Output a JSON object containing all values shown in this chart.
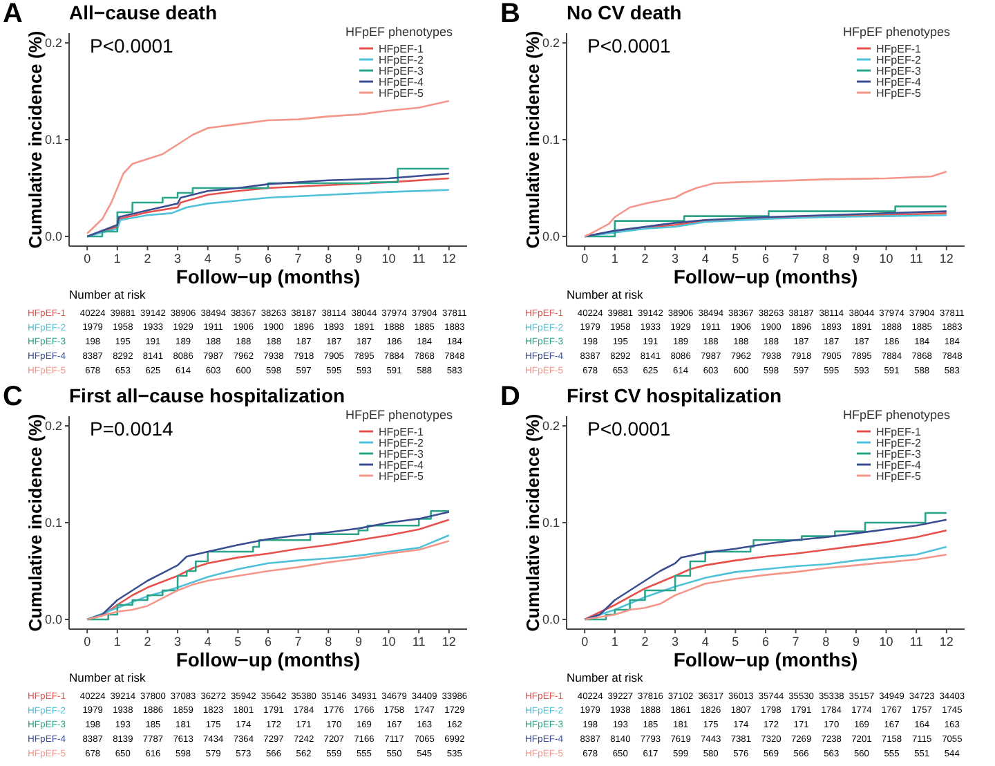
{
  "chart_data": [
    {
      "type": "line",
      "title": "All−cause death",
      "xlabel": "Follow−up (months)",
      "ylabel": "Cumulative incidence (%)",
      "legend_title": "HFpEF phenotypes",
      "legend": "top right",
      "grid": false,
      "xlim": [
        -0.6,
        12.6
      ],
      "ylim": [
        -0.01,
        0.21
      ],
      "xticks": [
        0,
        1,
        2,
        3,
        4,
        5,
        6,
        7,
        8,
        9,
        10,
        11,
        12
      ],
      "yticks": [
        {
          "value": 0,
          "label": "0.0"
        },
        {
          "value": 0.1,
          "label": "0.1"
        },
        {
          "value": 0.2,
          "label": "0.2"
        }
      ],
      "annotations": [
        "A",
        "P<0.0001",
        "Number at risk",
        "40224 39881 39142 38906 38494 38367 38263 38187 38114 38044 37974 37904 37811",
        "1979 1958 1933 1929 1911 1906 1900 1896 1893 1891 1888 1885 1883",
        "198 195 191 189 188 188 188 187 187 187 186 184 184",
        "8387 8292 8141 8086 7987 7962 7938 7918 7905 7895 7884 7868 7848",
        "678 653 625 614 603 600 598 597 595 593 591 588 583"
      ],
      "series": [
        {
          "name": "HFpEF-1",
          "color": "#e8514b",
          "x": [
            0,
            1,
            1.05,
            2,
            3,
            3.1,
            4,
            5,
            6,
            8,
            10,
            12
          ],
          "values": [
            0,
            0.01,
            0.018,
            0.025,
            0.03,
            0.035,
            0.043,
            0.047,
            0.05,
            0.053,
            0.056,
            0.06
          ]
        },
        {
          "name": "HFpEF-2",
          "color": "#4fc1d9",
          "x": [
            0,
            1,
            1.1,
            2,
            2.8,
            3.3,
            4,
            5,
            6,
            8,
            10,
            12
          ],
          "values": [
            0,
            0.008,
            0.017,
            0.022,
            0.024,
            0.03,
            0.034,
            0.037,
            0.04,
            0.043,
            0.046,
            0.048
          ]
        },
        {
          "name": "HFpEF-3",
          "color": "#2aa58a",
          "type": "step",
          "x": [
            0,
            0.5,
            1,
            1.5,
            2.5,
            3,
            3.5,
            6,
            9.4,
            10.3,
            12
          ],
          "values": [
            0,
            0.005,
            0.025,
            0.035,
            0.04,
            0.045,
            0.05,
            0.055,
            0.056,
            0.07,
            0.07
          ]
        },
        {
          "name": "HFpEF-4",
          "color": "#3b4e91",
          "x": [
            0,
            1,
            1.05,
            2,
            3,
            3.1,
            4,
            5,
            6,
            8,
            10,
            12
          ],
          "values": [
            0,
            0.012,
            0.02,
            0.027,
            0.034,
            0.04,
            0.047,
            0.05,
            0.054,
            0.058,
            0.06,
            0.065
          ]
        },
        {
          "name": "HFpEF-5",
          "color": "#f4978a",
          "x": [
            0,
            0.5,
            0.8,
            1,
            1.2,
            1.5,
            2,
            2.5,
            3,
            3.5,
            4,
            5,
            6,
            7,
            8,
            9,
            10,
            11,
            12
          ],
          "values": [
            0.003,
            0.018,
            0.035,
            0.05,
            0.065,
            0.075,
            0.08,
            0.085,
            0.095,
            0.105,
            0.112,
            0.116,
            0.12,
            0.121,
            0.124,
            0.126,
            0.13,
            0.133,
            0.14
          ]
        }
      ]
    },
    {
      "type": "line",
      "title": "No CV death",
      "xlabel": "Follow−up (months)",
      "ylabel": "Cumulative incidence (%)",
      "legend_title": "HFpEF phenotypes",
      "legend": "top right",
      "grid": false,
      "xlim": [
        -0.6,
        12.6
      ],
      "ylim": [
        -0.01,
        0.21
      ],
      "xticks": [
        0,
        1,
        2,
        3,
        4,
        5,
        6,
        7,
        8,
        9,
        10,
        11,
        12
      ],
      "yticks": [
        {
          "value": 0,
          "label": "0.0"
        },
        {
          "value": 0.1,
          "label": "0.1"
        },
        {
          "value": 0.2,
          "label": "0.2"
        }
      ],
      "annotations": [
        "B",
        "P<0.0001",
        "Number at risk",
        "40224 39881 39142 38906 38494 38367 38263 38187 38114 38044 37974 37904 37811",
        "1979 1958 1933 1929 1911 1906 1900 1896 1893 1891 1888 1885 1883",
        "198 195 191 189 188 188 188 187 187 187 186 184 184",
        "8387 8292 8141 8086 7987 7962 7938 7918 7905 7895 7884 7868 7848",
        "678 653 625 614 603 600 598 597 595 593 591 588 583"
      ],
      "series": [
        {
          "name": "HFpEF-1",
          "color": "#e8514b",
          "x": [
            0,
            1,
            2,
            3,
            4,
            6,
            8,
            10,
            12
          ],
          "values": [
            0,
            0.005,
            0.009,
            0.012,
            0.016,
            0.019,
            0.021,
            0.022,
            0.024
          ]
        },
        {
          "name": "HFpEF-2",
          "color": "#4fc1d9",
          "x": [
            0,
            1,
            2,
            3,
            4,
            6,
            8,
            10,
            12
          ],
          "values": [
            0,
            0.004,
            0.008,
            0.01,
            0.015,
            0.018,
            0.02,
            0.021,
            0.022
          ]
        },
        {
          "name": "HFpEF-3",
          "color": "#2aa58a",
          "type": "step",
          "x": [
            0,
            1,
            3.3,
            6.1,
            10.3,
            12
          ],
          "values": [
            0,
            0.016,
            0.021,
            0.026,
            0.031,
            0.031
          ]
        },
        {
          "name": "HFpEF-4",
          "color": "#3b4e91",
          "x": [
            0,
            1,
            2,
            3,
            4,
            6,
            8,
            10,
            12
          ],
          "values": [
            0,
            0.006,
            0.01,
            0.014,
            0.017,
            0.02,
            0.022,
            0.024,
            0.026
          ]
        },
        {
          "name": "HFpEF-5",
          "color": "#f4978a",
          "x": [
            0,
            0.2,
            0.5,
            0.8,
            1,
            1.5,
            2,
            2.5,
            3,
            3.3,
            3.7,
            4.3,
            5,
            6,
            8,
            10,
            11.5,
            12
          ],
          "values": [
            0,
            0.003,
            0.008,
            0.013,
            0.02,
            0.03,
            0.034,
            0.037,
            0.04,
            0.045,
            0.05,
            0.055,
            0.056,
            0.057,
            0.059,
            0.06,
            0.062,
            0.067
          ]
        }
      ]
    },
    {
      "type": "line",
      "title": "First all−cause hospitalization",
      "xlabel": "Follow−up (months)",
      "ylabel": "Cumulative incidence (%)",
      "legend_title": "HFpEF phenotypes",
      "legend": "top right",
      "grid": false,
      "xlim": [
        -0.6,
        12.6
      ],
      "ylim": [
        -0.01,
        0.21
      ],
      "xticks": [
        0,
        1,
        2,
        3,
        4,
        5,
        6,
        7,
        8,
        9,
        10,
        11,
        12
      ],
      "yticks": [
        {
          "value": 0,
          "label": "0.0"
        },
        {
          "value": 0.1,
          "label": "0.1"
        },
        {
          "value": 0.2,
          "label": "0.2"
        }
      ],
      "annotations": [
        "C",
        "P=0.0014",
        "Number at risk",
        "40224 39214 37800 37083 36272 35942 35642 35380 35146 34931 34679 34409 33986",
        "1979 1938 1886 1859 1823 1801 1791 1784 1776 1766 1758 1747 1729",
        "198 193 185 181 175 174 172 171 170 169 167 163 162",
        "8387 8139 7787 7613 7434 7364 7297 7242 7207 7166 7117 7065 6992",
        "678 650 616 598 579 573 566 562 559 555 550 545 535"
      ],
      "series": [
        {
          "name": "HFpEF-1",
          "color": "#e8514b",
          "x": [
            0,
            0.5,
            1,
            1.5,
            2,
            3,
            3.5,
            4,
            5,
            6,
            7,
            8,
            9,
            10,
            11,
            12
          ],
          "values": [
            0,
            0.004,
            0.015,
            0.025,
            0.033,
            0.045,
            0.053,
            0.058,
            0.064,
            0.068,
            0.073,
            0.077,
            0.082,
            0.087,
            0.093,
            0.103
          ]
        },
        {
          "name": "HFpEF-2",
          "color": "#4fc1d9",
          "x": [
            0,
            1,
            2,
            3,
            4,
            5,
            6,
            7,
            8,
            9,
            10,
            11,
            12
          ],
          "values": [
            0,
            0.012,
            0.024,
            0.033,
            0.044,
            0.052,
            0.058,
            0.061,
            0.063,
            0.066,
            0.07,
            0.074,
            0.087
          ]
        },
        {
          "name": "HFpEF-3",
          "color": "#2aa58a",
          "type": "step",
          "x": [
            0,
            0.6,
            0.7,
            1,
            1.5,
            2,
            2.5,
            3,
            3.3,
            3.6,
            4,
            5.5,
            5.7,
            7.3,
            7.4,
            9,
            9.3,
            11,
            11.4,
            12
          ],
          "values": [
            0,
            0,
            0.005,
            0.015,
            0.02,
            0.025,
            0.03,
            0.045,
            0.05,
            0.06,
            0.07,
            0.075,
            0.082,
            0.082,
            0.088,
            0.092,
            0.097,
            0.104,
            0.112,
            0.112
          ]
        },
        {
          "name": "HFpEF-4",
          "color": "#3b4e91",
          "x": [
            0,
            0.5,
            1,
            1.5,
            2,
            2.5,
            3,
            3.3,
            4,
            5,
            6,
            7,
            8,
            9,
            10,
            11,
            12
          ],
          "values": [
            0,
            0.005,
            0.02,
            0.03,
            0.04,
            0.048,
            0.056,
            0.065,
            0.07,
            0.077,
            0.083,
            0.087,
            0.09,
            0.094,
            0.1,
            0.104,
            0.111
          ]
        },
        {
          "name": "HFpEF-5",
          "color": "#f4978a",
          "x": [
            0,
            1,
            1.5,
            2,
            2.5,
            3,
            3.5,
            4,
            5,
            6,
            7,
            8,
            9,
            10,
            11,
            12
          ],
          "values": [
            0,
            0.008,
            0.01,
            0.014,
            0.022,
            0.03,
            0.036,
            0.04,
            0.045,
            0.05,
            0.054,
            0.059,
            0.063,
            0.068,
            0.072,
            0.081
          ]
        }
      ]
    },
    {
      "type": "line",
      "title": "First CV hospitalization",
      "xlabel": "Follow−up (months)",
      "ylabel": "Cumulative incidence (%)",
      "legend_title": "HFpEF phenotypes",
      "legend": "top right",
      "grid": false,
      "xlim": [
        -0.6,
        12.6
      ],
      "ylim": [
        -0.01,
        0.21
      ],
      "xticks": [
        0,
        1,
        2,
        3,
        4,
        5,
        6,
        7,
        8,
        9,
        10,
        11,
        12
      ],
      "yticks": [
        {
          "value": 0,
          "label": "0.0"
        },
        {
          "value": 0.1,
          "label": "0.1"
        },
        {
          "value": 0.2,
          "label": "0.2"
        }
      ],
      "annotations": [
        "D",
        "P<0.0001",
        "Number at risk",
        "40224 39227 37816 37102 36317 36013 35744 35530 35338 35157 34949 34723 34403",
        "1979 1938 1888 1861 1826 1807 1798 1791 1784 1774 1767 1757 1745",
        "198 193 185 181 175 174 172 171 170 169 167 164 163",
        "8387 8140 7793 7619 7443 7381 7320 7269 7238 7201 7158 7115 7055",
        "678 650 617 599 580 576 569 566 563 560 555 551 544"
      ],
      "series": [
        {
          "name": "HFpEF-1",
          "color": "#e8514b",
          "x": [
            0,
            1,
            2,
            3,
            3.5,
            4,
            5,
            6,
            7,
            8,
            9,
            10,
            11,
            12
          ],
          "values": [
            0,
            0.015,
            0.032,
            0.045,
            0.052,
            0.056,
            0.061,
            0.065,
            0.068,
            0.072,
            0.076,
            0.08,
            0.085,
            0.092
          ]
        },
        {
          "name": "HFpEF-2",
          "color": "#4fc1d9",
          "x": [
            0,
            1,
            2,
            3,
            4,
            5,
            6,
            7,
            8,
            9,
            10,
            11,
            12
          ],
          "values": [
            0,
            0.01,
            0.023,
            0.034,
            0.043,
            0.049,
            0.052,
            0.055,
            0.057,
            0.061,
            0.064,
            0.067,
            0.075
          ]
        },
        {
          "name": "HFpEF-3",
          "color": "#2aa58a",
          "type": "step",
          "x": [
            0,
            0.6,
            0.7,
            1,
            1.5,
            2,
            3,
            3.5,
            4,
            5.5,
            5.6,
            7,
            7.2,
            8.3,
            9.3,
            11.3,
            12
          ],
          "values": [
            0,
            0,
            0.005,
            0.01,
            0.02,
            0.03,
            0.045,
            0.06,
            0.07,
            0.075,
            0.082,
            0.082,
            0.086,
            0.091,
            0.1,
            0.11,
            0.11
          ]
        },
        {
          "name": "HFpEF-4",
          "color": "#3b4e91",
          "x": [
            0,
            0.5,
            1,
            1.5,
            2,
            2.5,
            3,
            3.2,
            4,
            5,
            6,
            7,
            8,
            9,
            10,
            11,
            12
          ],
          "values": [
            0,
            0.005,
            0.02,
            0.03,
            0.04,
            0.05,
            0.058,
            0.064,
            0.069,
            0.073,
            0.078,
            0.082,
            0.085,
            0.089,
            0.093,
            0.097,
            0.103
          ]
        },
        {
          "name": "HFpEF-5",
          "color": "#f4978a",
          "x": [
            0,
            1,
            1.5,
            2,
            2.5,
            3,
            3.5,
            4,
            5,
            6,
            7,
            8,
            9,
            10,
            11,
            12
          ],
          "values": [
            0,
            0.005,
            0.01,
            0.012,
            0.016,
            0.025,
            0.031,
            0.037,
            0.042,
            0.046,
            0.049,
            0.053,
            0.056,
            0.059,
            0.062,
            0.067
          ]
        }
      ]
    }
  ]
}
